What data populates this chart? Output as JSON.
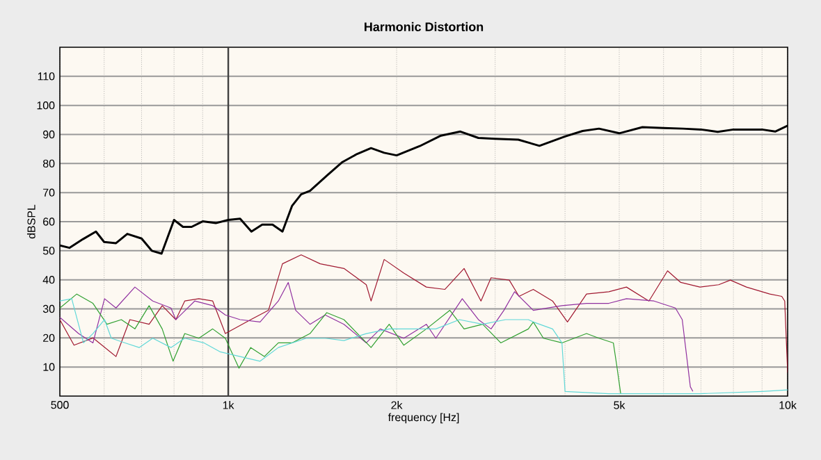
{
  "chart_data": {
    "type": "line",
    "title": "Harmonic Distortion",
    "xlabel": "frequency [Hz]",
    "ylabel": "dBSPL",
    "log": "x",
    "grid": true,
    "legend": false,
    "marker": "none",
    "line_style": "solid",
    "xlim": [
      500,
      10000
    ],
    "ylim": [
      0,
      120
    ],
    "xticks": [
      500,
      {
        "value": 600,
        "label": null
      },
      {
        "value": 700,
        "label": null
      },
      {
        "value": 800,
        "label": null
      },
      {
        "value": 900,
        "label": null
      },
      {
        "value": 1000,
        "label": "1k"
      },
      {
        "value": 2000,
        "label": "2k"
      },
      {
        "value": 3000,
        "label": null
      },
      {
        "value": 4000,
        "label": null
      },
      {
        "value": 5000,
        "label": "5k"
      },
      {
        "value": 6000,
        "label": null
      },
      {
        "value": 7000,
        "label": null
      },
      {
        "value": 8000,
        "label": null
      },
      {
        "value": 9000,
        "label": null
      },
      {
        "value": 10000,
        "label": "10k"
      }
    ],
    "yticks": [
      10,
      20,
      30,
      40,
      50,
      60,
      70,
      80,
      90,
      100,
      110
    ],
    "ref_lines": [
      {
        "axis": "x",
        "value": 1000,
        "color": "#404040"
      }
    ],
    "series": [
      {
        "color": "#000000",
        "x": [
          500,
          520,
          550,
          580,
          600,
          630,
          660,
          700,
          730,
          760,
          800,
          830,
          860,
          900,
          950,
          1000,
          1050,
          1100,
          1150,
          1200,
          1250,
          1300,
          1350,
          1400,
          1500,
          1600,
          1700,
          1800,
          1900,
          2000,
          2200,
          2400,
          2600,
          2800,
          3000,
          3300,
          3600,
          4000,
          4300,
          4600,
          5000,
          5500,
          6000,
          6500,
          7000,
          7500,
          8000,
          8500,
          9000,
          9500,
          10000
        ],
        "values": [
          51.8,
          51,
          54,
          56.6,
          53,
          52.6,
          55.8,
          54.2,
          50,
          49,
          60.6,
          58.2,
          58.2,
          60.1,
          59.5,
          60.6,
          61,
          56.6,
          59,
          59,
          56.6,
          65.4,
          69.4,
          70.6,
          75.8,
          80.5,
          83.3,
          85.3,
          83.7,
          82.8,
          86,
          89.6,
          91,
          88.8,
          88.5,
          88.2,
          86.1,
          89.3,
          91.2,
          92,
          90.4,
          92.5,
          92.2,
          92,
          91.7,
          90.9,
          91.7,
          91.7,
          91.7,
          91,
          93
        ]
      },
      {
        "color": "#a01830",
        "x": [
          500,
          530,
          573,
          630,
          667,
          722,
          762,
          806,
          836,
          886,
          938,
          988,
          1097,
          1180,
          1250,
          1350,
          1460,
          1610,
          1765,
          1800,
          1900,
          2060,
          2260,
          2440,
          2640,
          2830,
          2950,
          3180,
          3310,
          3510,
          3800,
          4040,
          4370,
          4790,
          5150,
          5650,
          6100,
          6440,
          6970,
          7530,
          7900,
          8440,
          9290,
          9760,
          9880,
          10000
        ],
        "values": [
          26.3,
          17.5,
          20,
          13.6,
          26.3,
          24.7,
          31.1,
          26.3,
          32.7,
          33.5,
          32.7,
          21.5,
          26.3,
          29.5,
          45.5,
          48.6,
          45.5,
          43.9,
          38.3,
          32.7,
          47,
          42.3,
          37.5,
          36.7,
          43.9,
          32.7,
          40.7,
          39.9,
          34.3,
          36.7,
          32.7,
          25.5,
          35.1,
          35.9,
          37.5,
          32.7,
          43.1,
          39.1,
          37.5,
          38.3,
          39.9,
          37.5,
          35.1,
          34.3,
          32.7,
          8
        ]
      },
      {
        "color": "#9030a0",
        "x": [
          500,
          540,
          573,
          601,
          630,
          681,
          733,
          790,
          806,
          871,
          938,
          988,
          1050,
          1140,
          1229,
          1280,
          1320,
          1400,
          1490,
          1610,
          1765,
          1870,
          2060,
          2260,
          2350,
          2620,
          2800,
          2950,
          3110,
          3250,
          3510,
          3950,
          4370,
          4790,
          5150,
          5770,
          6300,
          6480,
          6700,
          6770
        ],
        "values": [
          27.1,
          21.5,
          18.3,
          33.5,
          30.3,
          37.5,
          32.7,
          30.3,
          26.3,
          32.7,
          31.1,
          27.9,
          26.3,
          25.5,
          32.7,
          39.1,
          29.5,
          24.7,
          27.9,
          24.7,
          18.3,
          23.1,
          19.9,
          24.7,
          19.9,
          33.5,
          26.3,
          23.1,
          29.5,
          35.9,
          29.5,
          31.1,
          31.9,
          31.9,
          33.5,
          32.7,
          30.3,
          26.3,
          3.2,
          1.6
        ]
      },
      {
        "color": "#30a030",
        "x": [
          500,
          536,
          573,
          607,
          644,
          681,
          722,
          762,
          797,
          836,
          886,
          938,
          988,
          1045,
          1097,
          1160,
          1229,
          1300,
          1400,
          1500,
          1610,
          1800,
          1940,
          2060,
          2260,
          2490,
          2640,
          2850,
          3070,
          3440,
          3510,
          3660,
          3950,
          4370,
          4600,
          4880,
          4950,
          5030
        ],
        "values": [
          30.3,
          35.1,
          31.9,
          24.7,
          26.3,
          23.1,
          31.1,
          23.1,
          12,
          21.5,
          19.9,
          23.1,
          19.9,
          9.6,
          16.7,
          13.6,
          18.3,
          18.3,
          21.5,
          28.7,
          26.3,
          16.7,
          24.7,
          17.5,
          23.1,
          29.5,
          23.1,
          24.7,
          18.3,
          23.1,
          25.5,
          19.9,
          18.3,
          21.5,
          19.9,
          18.3,
          10.4,
          0.8
        ]
      },
      {
        "color": "#60d8d8",
        "x": [
          500,
          525,
          551,
          573,
          601,
          618,
          654,
          693,
          733,
          790,
          836,
          905,
          968,
          1050,
          1140,
          1229,
          1379,
          1490,
          1610,
          1765,
          1940,
          2140,
          2350,
          2590,
          2850,
          3130,
          3440,
          3510,
          3800,
          3950,
          4000,
          4790,
          6970,
          9000,
          10000
        ],
        "values": [
          32.7,
          33.5,
          18.3,
          21.5,
          26.3,
          19.9,
          18.3,
          16.7,
          19.9,
          16.7,
          19.9,
          18.3,
          15.2,
          13.6,
          12,
          16.7,
          19.9,
          19.9,
          19.1,
          21.5,
          23.1,
          23.1,
          23.1,
          26.3,
          24.7,
          26.3,
          26.3,
          25.5,
          23.1,
          18.3,
          1.6,
          0.8,
          0.8,
          1.6,
          2.1
        ]
      }
    ]
  }
}
